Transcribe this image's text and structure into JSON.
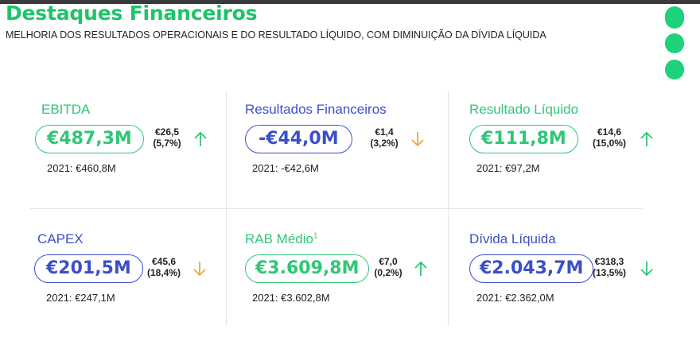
{
  "header": {
    "title": "Destaques Financeiros",
    "subtitle": "MELHORIA DOS RESULTADOS OPERACIONAIS E DO RESULTADO LÍQUIDO, COM DIMINUIÇÃO DA DÍVIDA LÍQUIDA"
  },
  "colors": {
    "green": "#2ec776",
    "blue": "#3b4fc9",
    "orange": "#f0a53a",
    "brand_green": "#1fd17a"
  },
  "metrics": [
    {
      "label": "EBITDA",
      "value": "€487,3M",
      "delta_abs": "€26,5",
      "delta_pct": "(5,7%)",
      "trend": "up",
      "previous": "2021: €460,8M"
    },
    {
      "label": "Resultados Financeiros",
      "value": "-€44,0M",
      "delta_abs": "€1,4",
      "delta_pct": "(3,2%)",
      "trend": "down",
      "previous": "2021: -€42,6M"
    },
    {
      "label": "Resultado Líquido",
      "value": "€111,8M",
      "delta_abs": "€14,6",
      "delta_pct": "(15,0%)",
      "trend": "up",
      "previous": "2021: €97,2M"
    },
    {
      "label": "CAPEX",
      "value": "€201,5M",
      "delta_abs": "€45,6",
      "delta_pct": "(18,4%)",
      "trend": "down",
      "previous": "2021: €247,1M"
    },
    {
      "label": "RAB Médio",
      "footnote": "1",
      "value": "€3.609,8M",
      "delta_abs": "€7,0",
      "delta_pct": "(0,2%)",
      "trend": "up",
      "previous": "2021: €3.602,8M"
    },
    {
      "label": "Dívida Líquida",
      "value": "€2.043,7M",
      "delta_abs": "€318,3",
      "delta_pct": "(13,5%)",
      "trend": "down",
      "previous": "2021: €2.362,0M"
    }
  ]
}
